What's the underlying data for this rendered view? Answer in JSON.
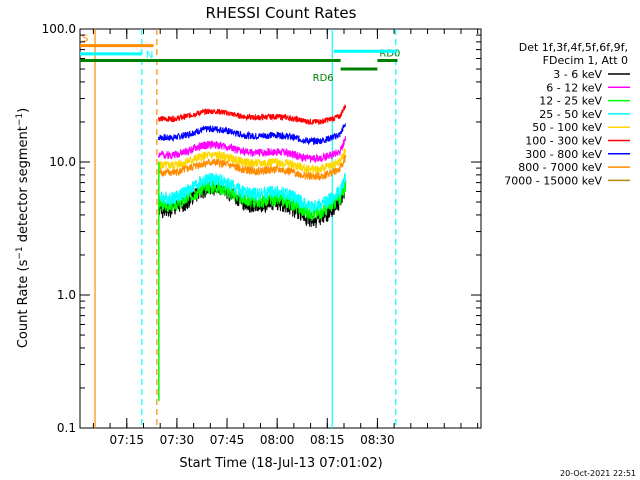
{
  "chart_data": {
    "type": "line",
    "title": "RHESSI Count Rates",
    "xlabel": "Start Time (18-Jul-13 07:01:02)",
    "ylabel_main": "Count Rate (s",
    "ylabel_sup1": "−1",
    "ylabel_mid": " detector segment",
    "ylabel_sup2": "−1",
    "ylabel_end": ")",
    "yscale": "log",
    "ylim": [
      0.1,
      100
    ],
    "xlim_minutes": [
      0,
      120
    ],
    "xticks": [
      {
        "t": 14,
        "label": "07:15"
      },
      {
        "t": 29,
        "label": "07:30"
      },
      {
        "t": 44,
        "label": "07:45"
      },
      {
        "t": 59,
        "label": "08:00"
      },
      {
        "t": 74,
        "label": "08:15"
      },
      {
        "t": 89,
        "label": "08:30"
      }
    ],
    "yticks": [
      {
        "v": 0.1,
        "label": "0.1"
      },
      {
        "v": 1.0,
        "label": "1.0"
      },
      {
        "v": 10.0,
        "label": "10.0"
      },
      {
        "v": 100.0,
        "label": "100.0"
      }
    ],
    "legend_header": [
      "Det 1f,3f,4f,5f,6f,9f,",
      "FDecim 1, Att 0"
    ],
    "legend_position": "right",
    "series": [
      {
        "name": "3 - 6 keV",
        "color": "#000000",
        "level": 5.0,
        "amp": 0.18,
        "noise": 0.14,
        "seed": 1
      },
      {
        "name": "6 - 12 keV",
        "color": "#ff00ff",
        "level": 12.0,
        "amp": 0.08,
        "noise": 0.07,
        "seed": 2
      },
      {
        "name": "12 - 25 keV",
        "color": "#00ff00",
        "level": 5.3,
        "amp": 0.15,
        "noise": 0.12,
        "seed": 3
      },
      {
        "name": "25 - 50 keV",
        "color": "#00ffff",
        "level": 6.0,
        "amp": 0.15,
        "noise": 0.12,
        "seed": 4
      },
      {
        "name": "50 - 100 keV",
        "color": "#ffd700",
        "level": 10.0,
        "amp": 0.08,
        "noise": 0.08,
        "seed": 5
      },
      {
        "name": "100 - 300 keV",
        "color": "#ff0000",
        "level": 22.0,
        "amp": 0.06,
        "noise": 0.05,
        "seed": 6
      },
      {
        "name": "300 - 800 keV",
        "color": "#0000ff",
        "level": 16.0,
        "amp": 0.07,
        "noise": 0.06,
        "seed": 7
      },
      {
        "name": "800 - 7000 keV",
        "color": "#ff8c00",
        "level": 8.8,
        "amp": 0.08,
        "noise": 0.07,
        "seed": 8
      },
      {
        "name": "7000 - 15000 keV",
        "color": "#b8860b",
        "level": 0.0,
        "amp": 0.0,
        "noise": 0.0,
        "seed": 9
      }
    ],
    "data_start_min": 23.5,
    "data_end_min": 79.5,
    "vertical_markers": [
      {
        "t": 4.5,
        "color": "#ff8c00",
        "dash": false
      },
      {
        "t": 18.5,
        "color": "#00ffff",
        "dash": true
      },
      {
        "t": 23,
        "color": "#ff8c00",
        "dash": true
      },
      {
        "t": 75.5,
        "color": "#00ffff",
        "dash": false
      },
      {
        "t": 94.5,
        "color": "#00ffff",
        "dash": true
      }
    ],
    "flag_bars": [
      {
        "label": "S",
        "color": "#ff8c00",
        "t0": 0,
        "t1": 22,
        "level": 75
      },
      {
        "label": "N",
        "color": "#00ffff",
        "t0": 0,
        "t1": 18.5,
        "level": 65
      },
      {
        "label": "",
        "color": "#008000",
        "t0": 0,
        "t1": 78,
        "level": 58
      },
      {
        "label": "RD6",
        "color": "#008000",
        "t0": 78,
        "t1": 89,
        "level": 50
      },
      {
        "label": "RD0",
        "color": "#008000",
        "t0": 89,
        "t1": 95,
        "level": 58
      },
      {
        "label": "",
        "color": "#00ffff",
        "t0": 76,
        "t1": 95,
        "level": 68
      }
    ],
    "timestamp": "20-Oct-2021 22:51"
  }
}
